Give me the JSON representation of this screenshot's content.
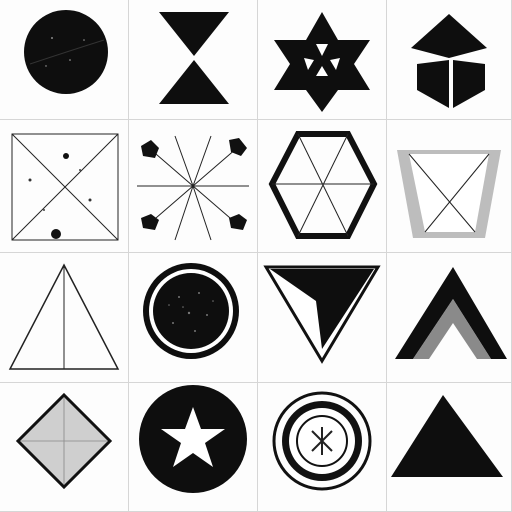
{
  "tiles": [
    {
      "name": "tile-dark-circle",
      "shape": "circle",
      "caption": ""
    },
    {
      "name": "tile-hourglass",
      "shape": "hourglass",
      "caption": ""
    },
    {
      "name": "tile-hexagram",
      "shape": "hexagram",
      "caption": ""
    },
    {
      "name": "tile-arrow-cross",
      "shape": "arrow-cross",
      "caption": ""
    },
    {
      "name": "tile-x-square",
      "shape": "x-square",
      "caption": ""
    },
    {
      "name": "tile-radiating-lines",
      "shape": "radiating-lines",
      "caption": ""
    },
    {
      "name": "tile-hexagon",
      "shape": "hexagon",
      "caption": ""
    },
    {
      "name": "tile-inverted-trapezoid",
      "shape": "inverted-trapezoid",
      "caption": ""
    },
    {
      "name": "tile-outline-triangle",
      "shape": "triangle-outline",
      "caption": ""
    },
    {
      "name": "tile-speckled-circle",
      "shape": "speckled-circle",
      "caption": ""
    },
    {
      "name": "tile-chevron",
      "shape": "chevron",
      "caption": ""
    },
    {
      "name": "tile-layered-chevron",
      "shape": "layered-chevron",
      "caption": ""
    },
    {
      "name": "tile-diamond",
      "shape": "diamond",
      "caption": ""
    },
    {
      "name": "tile-star-circle",
      "shape": "star-circle",
      "caption": ""
    },
    {
      "name": "tile-ring-badge",
      "shape": "ring-badge",
      "caption": ""
    },
    {
      "name": "tile-solid-triangle",
      "shape": "triangle-solid",
      "caption": ""
    }
  ],
  "colors": {
    "ink": "#111111",
    "gray": "#9a9a9a",
    "light_gray": "#c8c8c8",
    "paper": "#ffffff"
  }
}
